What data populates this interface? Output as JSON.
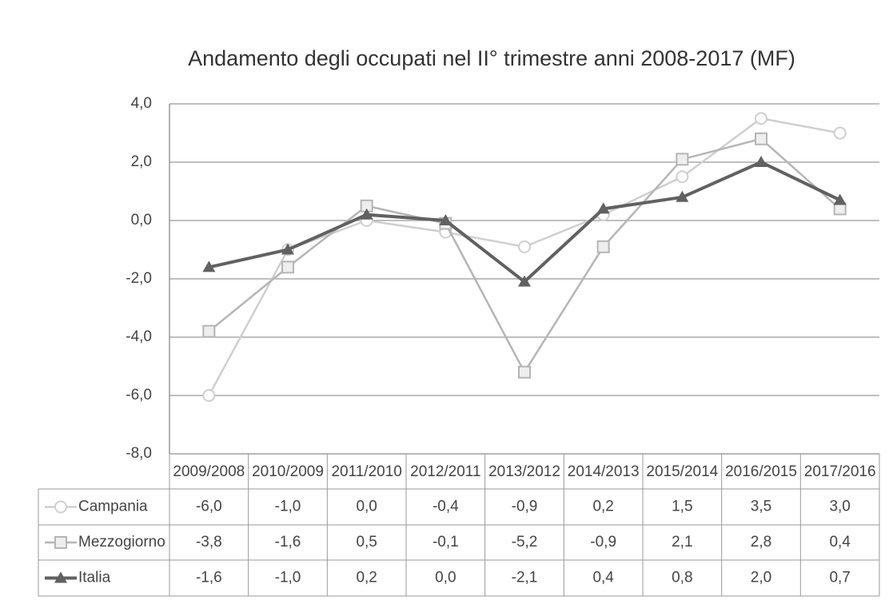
{
  "chart_data": {
    "type": "line",
    "title": "Andamento degli occupati nel II° trimestre anni 2008-2017 (MF)",
    "categories": [
      "2009/2008",
      "2010/2009",
      "2011/2010",
      "2012/2011",
      "2013/2012",
      "2014/2013",
      "2015/2014",
      "2016/2015",
      "2017/2016"
    ],
    "series": [
      {
        "name": "Campania",
        "color": "#cfcfcf",
        "marker": "circle",
        "values": [
          -6.0,
          -1.0,
          0.0,
          -0.4,
          -0.9,
          0.2,
          1.5,
          3.5,
          3.0
        ],
        "value_labels": [
          "-6,0",
          "-1,0",
          "0,0",
          "-0,4",
          "-0,9",
          "0,2",
          "1,5",
          "3,5",
          "3,0"
        ]
      },
      {
        "name": "Mezzogiorno",
        "color": "#b5b5b5",
        "marker": "square",
        "values": [
          -3.8,
          -1.6,
          0.5,
          -0.1,
          -5.2,
          -0.9,
          2.1,
          2.8,
          0.4
        ],
        "value_labels": [
          "-3,8",
          "-1,6",
          "0,5",
          "-0,1",
          "-5,2",
          "-0,9",
          "2,1",
          "2,8",
          "0,4"
        ]
      },
      {
        "name": "Italia",
        "color": "#616161",
        "marker": "triangle",
        "values": [
          -1.6,
          -1.0,
          0.2,
          0.0,
          -2.1,
          0.4,
          0.8,
          2.0,
          0.7
        ],
        "value_labels": [
          "-1,6",
          "-1,0",
          "0,2",
          "0,0",
          "-2,1",
          "0,4",
          "0,8",
          "2,0",
          "0,7"
        ]
      }
    ],
    "ylim": [
      -8,
      4
    ],
    "yticks": [
      {
        "value": -8,
        "label": "-8,0"
      },
      {
        "value": -6,
        "label": "-6,0"
      },
      {
        "value": -4,
        "label": "-4,0"
      },
      {
        "value": -2,
        "label": "-2,0"
      },
      {
        "value": 0,
        "label": "0,0"
      },
      {
        "value": 2,
        "label": "2,0"
      },
      {
        "value": 4,
        "label": "4,0"
      }
    ],
    "grid": true
  }
}
